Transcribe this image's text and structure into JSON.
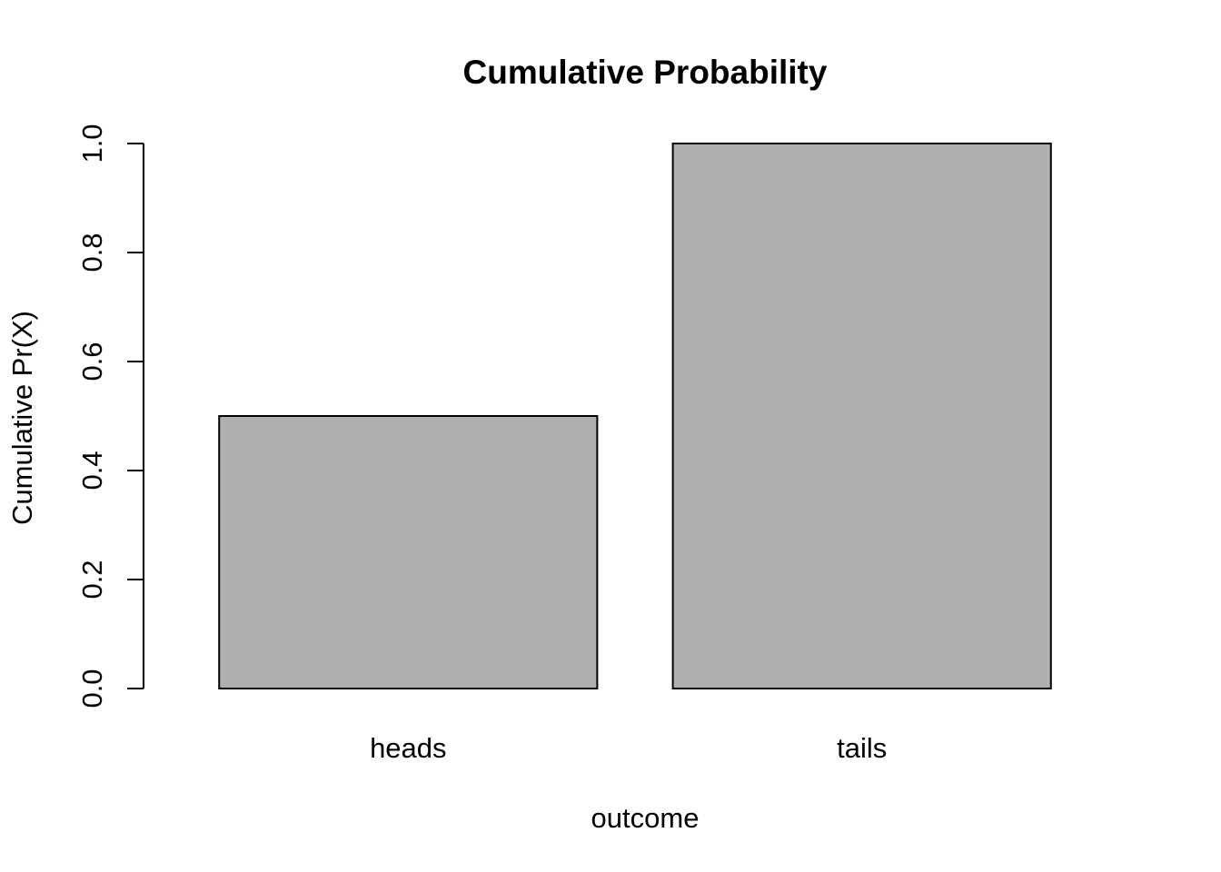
{
  "chart_data": {
    "type": "bar",
    "title": "Cumulative Probability",
    "xlabel": "outcome",
    "ylabel": "Cumulative Pr(X)",
    "categories": [
      "heads",
      "tails"
    ],
    "values": [
      0.5,
      1.0
    ],
    "ylim": [
      0,
      1
    ],
    "yticks": [
      "0.0",
      "0.2",
      "0.4",
      "0.6",
      "0.8",
      "1.0"
    ],
    "bar_color": "#b0b0b0",
    "grid": false,
    "legend": "none"
  }
}
